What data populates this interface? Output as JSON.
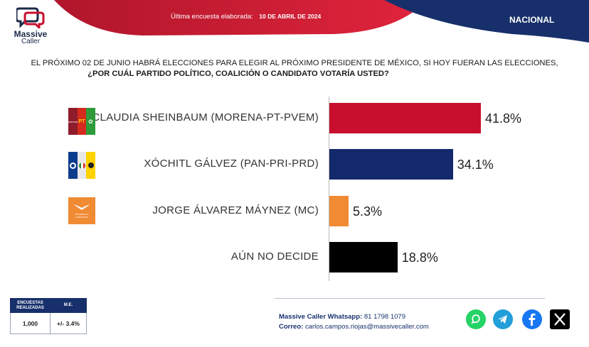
{
  "header": {
    "brand_line1": "Massive",
    "brand_line2": "Caller",
    "survey_label": "Última encuesta elaborada:",
    "survey_date": "10 DE ABRIL DE 2024",
    "scope": "NACIONAL"
  },
  "question": {
    "line1": "EL PRÓXIMO 02 DE JUNIO HABRÁ ELECCIONES PARA ELEGIR AL PRÓXIMO PRESIDENTE DE MÉXICO, SI HOY FUERAN LAS ELECCIONES,",
    "line2": "¿POR CUÁL PARTIDO POLÍTICO, COALICIÓN O CANDIDATO VOTARÍA USTED?"
  },
  "chart_data": {
    "type": "bar",
    "orientation": "horizontal",
    "categories": [
      "CLAUDIA SHEINBAUM (MORENA-PT-PVEM)",
      "XÓCHITL GÁLVEZ (PAN-PRI-PRD)",
      "JORGE ÁLVAREZ MÁYNEZ (MC)",
      "AÚN NO DECIDE"
    ],
    "values": [
      41.8,
      34.1,
      5.3,
      18.8
    ],
    "data_labels": [
      "41.8%",
      "34.1%",
      "5.3%",
      "18.8%"
    ],
    "colors": [
      "#c8102e",
      "#14296b",
      "#f08a33",
      "#000000"
    ],
    "xlim": [
      0,
      100
    ],
    "grid": false,
    "legend": "none"
  },
  "party_logos": {
    "morena_text": "morena",
    "pt_text": "PT",
    "mc_text": "MOVIMIENTO CIUDADANO"
  },
  "meta_table": {
    "header_1_line1": "ENCUESTAS",
    "header_1_line2": "REALIZADAS",
    "header_2": "M.E.",
    "value_1": "1,000",
    "value_2": "+/- 3.4%"
  },
  "contact": {
    "whatsapp_label": "Massive Caller Whatsapp:",
    "whatsapp_number": "81 1798 1079",
    "email_label": "Correo:",
    "email": "carlos.campos.riojas@massivecaller.com"
  },
  "social": {
    "icons": [
      "whatsapp-icon",
      "telegram-icon",
      "facebook-icon",
      "x-icon"
    ],
    "colors": [
      "#25d366",
      "#229ed9",
      "#1877f2",
      "#000000"
    ]
  }
}
